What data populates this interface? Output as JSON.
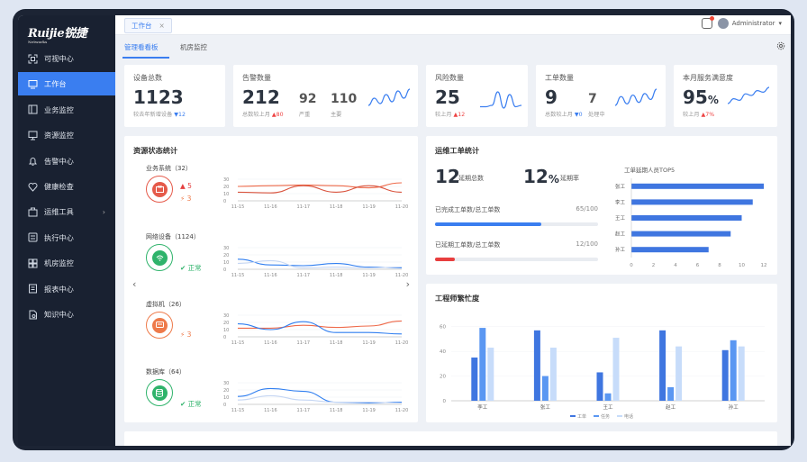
{
  "brand": {
    "logo": "Ruijie锐捷",
    "sub": "Networks"
  },
  "sidebar": {
    "items": [
      {
        "label": "可视中心",
        "icon": "scan-icon"
      },
      {
        "label": "工作台",
        "icon": "workbench-icon",
        "active": true
      },
      {
        "label": "业务监控",
        "icon": "business-monitor-icon"
      },
      {
        "label": "资源监控",
        "icon": "monitor-icon"
      },
      {
        "label": "告警中心",
        "icon": "alarm-bell-icon"
      },
      {
        "label": "健康检查",
        "icon": "health-icon"
      },
      {
        "label": "运维工具",
        "icon": "toolbox-icon",
        "has_arrow": true
      },
      {
        "label": "执行中心",
        "icon": "execute-icon"
      },
      {
        "label": "机房监控",
        "icon": "server-room-icon"
      },
      {
        "label": "报表中心",
        "icon": "report-icon"
      },
      {
        "label": "知识中心",
        "icon": "knowledge-icon"
      }
    ]
  },
  "topbar": {
    "tab": "工作台",
    "tab_close": "×",
    "user": "Administrator",
    "user_caret": "▾"
  },
  "subtabs": [
    "管理看看板",
    "机房监控"
  ],
  "kpis": {
    "devices": {
      "title": "设备总数",
      "value": "1123",
      "sub_text": "较去年新增设备",
      "sub_value": "▼12"
    },
    "alerts": {
      "title": "告警数量",
      "value": "212",
      "sub_text": "总数较上月",
      "sub_value": "▲80",
      "m1_value": "92",
      "m1_label": "严重",
      "m2_value": "110",
      "m2_label": "主要"
    },
    "risks": {
      "title": "风险数量",
      "value": "25",
      "sub_text": "较上月",
      "sub_value": "▲12"
    },
    "tickets": {
      "title": "工单数量",
      "value": "9",
      "sub_text": "总数较上月",
      "sub_value": "▼0",
      "m1_value": "7",
      "m1_label": "处理中"
    },
    "satisfaction": {
      "title": "本月服务满意度",
      "value": "95",
      "unit": "%",
      "sub_text": "较上月",
      "sub_value": "▲7%"
    }
  },
  "resource_status": {
    "title": "资源状态统计",
    "items": [
      {
        "name": "业务系统（32）",
        "s1": "▲ 5",
        "s2": "⚡ 3"
      },
      {
        "name": "网络设备（1124）",
        "s1": "✔ 正常"
      },
      {
        "name": "虚拟机（26）",
        "s2": "⚡ 3"
      },
      {
        "name": "数据库（64）",
        "s1": "✔ 正常"
      }
    ],
    "x_ticks": [
      "11-15",
      "11-16",
      "11-17",
      "11-18",
      "11-19",
      "11-20"
    ],
    "y_ticks": [
      "30",
      "20",
      "10",
      "0"
    ],
    "prev": "‹",
    "next": "›"
  },
  "ops_tickets": {
    "title": "运维工单统计",
    "overdue_total": "12",
    "overdue_total_label": "延期总数",
    "overdue_rate": "12",
    "overdue_rate_unit": "%",
    "overdue_rate_label": "延期率",
    "done_label": "已完成工单数/总工单数",
    "done_value": "65/100",
    "done_ratio": 0.65,
    "overdue_label": "已延期工单数/总工单数",
    "overdue_value": "12/100",
    "overdue_ratio": 0.12,
    "top5_title": "工单延期人员TOP5"
  },
  "workload": {
    "title": "工程师繁忙度"
  },
  "chart_data": [
    {
      "type": "bar",
      "title": "工单延期人员TOP5",
      "orientation": "horizontal",
      "categories": [
        "张工",
        "李工",
        "王工",
        "赵工",
        "孙工"
      ],
      "values": [
        12,
        11,
        10,
        9,
        7
      ],
      "xlim": [
        0,
        12
      ],
      "x_ticks": [
        "0",
        "2",
        "4",
        "6",
        "8",
        "10",
        "12"
      ]
    },
    {
      "type": "bar",
      "title": "工程师繁忙度",
      "categories": [
        "李工",
        "张工",
        "王工",
        "赵工",
        "孙工"
      ],
      "series": [
        {
          "name": "工单",
          "color": "#3f76e0",
          "values": [
            35,
            57,
            23,
            57,
            41
          ]
        },
        {
          "name": "任务",
          "color": "#5a97f2",
          "values": [
            59,
            20,
            6,
            11,
            49
          ]
        },
        {
          "name": "电话",
          "color": "#c7dcfa",
          "values": [
            43,
            43,
            51,
            44,
            44
          ]
        }
      ],
      "ylim": [
        0,
        70
      ],
      "y_ticks": [
        "60",
        "40",
        "20",
        "0"
      ]
    },
    {
      "type": "line",
      "title": "业务系统",
      "x": [
        "11-15",
        "11-16",
        "11-17",
        "11-18",
        "11-19",
        "11-20"
      ],
      "ylim": [
        0,
        30
      ],
      "series": [
        {
          "name": "a",
          "color": "#ee6a4a",
          "values": [
            20,
            21,
            22,
            21,
            18,
            25
          ]
        },
        {
          "name": "b",
          "color": "#d9533d",
          "values": [
            12,
            11,
            21,
            12,
            21,
            12
          ]
        }
      ]
    },
    {
      "type": "line",
      "title": "网络设备",
      "x": [
        "11-15",
        "11-16",
        "11-17",
        "11-18",
        "11-19",
        "11-20"
      ],
      "ylim": [
        0,
        30
      ],
      "series": [
        {
          "name": "a",
          "color": "#2f7ef0",
          "values": [
            14,
            6,
            5,
            8,
            3,
            2
          ]
        },
        {
          "name": "b",
          "color": "#c5d6f3",
          "values": [
            8,
            12,
            2,
            3,
            2,
            3
          ]
        }
      ]
    },
    {
      "type": "line",
      "title": "虚拟机",
      "x": [
        "11-15",
        "11-16",
        "11-17",
        "11-18",
        "11-19",
        "11-20"
      ],
      "ylim": [
        0,
        30
      ],
      "series": [
        {
          "name": "a",
          "color": "#ee6a4a",
          "values": [
            12,
            12,
            16,
            13,
            15,
            22
          ]
        },
        {
          "name": "b",
          "color": "#2f7ef0",
          "values": [
            18,
            10,
            21,
            6,
            6,
            4
          ]
        }
      ]
    },
    {
      "type": "line",
      "title": "数据库",
      "x": [
        "11-15",
        "11-16",
        "11-17",
        "11-18",
        "11-19",
        "11-20"
      ],
      "ylim": [
        0,
        30
      ],
      "series": [
        {
          "name": "a",
          "color": "#2f7ef0",
          "values": [
            11,
            22,
            18,
            3,
            2,
            3
          ]
        },
        {
          "name": "b",
          "color": "#c5d6f3",
          "values": [
            6,
            12,
            6,
            3,
            3,
            2
          ]
        }
      ]
    }
  ],
  "kpi_sparklines": {
    "alerts": [
      5,
      9,
      6,
      11,
      7,
      13,
      9,
      14
    ],
    "risks": [
      3,
      3,
      4,
      14,
      2,
      12,
      3,
      4
    ],
    "tickets": [
      4,
      10,
      5,
      11,
      6,
      12,
      8,
      15
    ],
    "satisfaction": [
      4,
      7,
      6,
      10,
      9,
      12,
      11,
      14
    ]
  },
  "colors": {
    "accent": "#3a7ef0",
    "red": "#e44040",
    "green": "#2fb36b",
    "orange": "#ee6a4a"
  }
}
